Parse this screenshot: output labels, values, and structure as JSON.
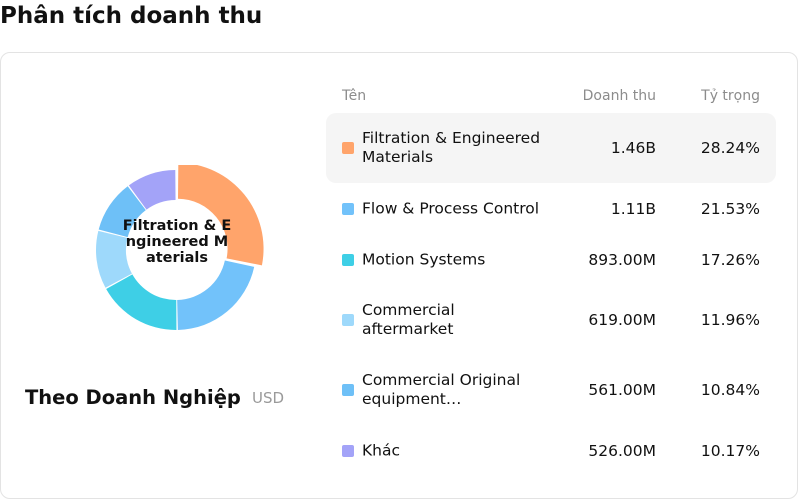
{
  "page_title": "Phân tích doanh thu",
  "group": {
    "name": "Theo Doanh Nghiệp",
    "unit": "USD"
  },
  "donut_center_label": "Filtration & Engineered Materials",
  "table": {
    "headers": {
      "name": "Tên",
      "revenue": "Doanh thu",
      "share": "Tỷ trọng"
    },
    "rows": [
      {
        "name": "Filtration & Engineered\nMaterials",
        "revenue": "1.46B",
        "share": "28.24%",
        "color": "#FFA46B"
      },
      {
        "name": "Flow & Process Control",
        "revenue": "1.11B",
        "share": "21.53%",
        "color": "#72C2FA"
      },
      {
        "name": "Motion Systems",
        "revenue": "893.00M",
        "share": "17.26%",
        "color": "#3ECFE6"
      },
      {
        "name": "Commercial\naftermarket",
        "revenue": "619.00M",
        "share": "11.96%",
        "color": "#9ED9FB"
      },
      {
        "name": "Commercial Original\nequipment…",
        "revenue": "561.00M",
        "share": "10.84%",
        "color": "#6EC0F7"
      },
      {
        "name": "Khác",
        "revenue": "526.00M",
        "share": "10.17%",
        "color": "#A3A3F8"
      }
    ]
  },
  "chart_data": {
    "type": "pie",
    "donut": true,
    "labels": [
      "Filtration & Engineered Materials",
      "Flow & Process Control",
      "Motion Systems",
      "Commercial aftermarket",
      "Commercial Original equipment…",
      "Khác"
    ],
    "values": [
      28.24,
      21.53,
      17.26,
      11.96,
      10.84,
      10.17
    ],
    "colors": [
      "#FFA46B",
      "#72C2FA",
      "#3ECFE6",
      "#9ED9FB",
      "#6EC0F7",
      "#A3A3F8"
    ],
    "highlighted": 0
  }
}
